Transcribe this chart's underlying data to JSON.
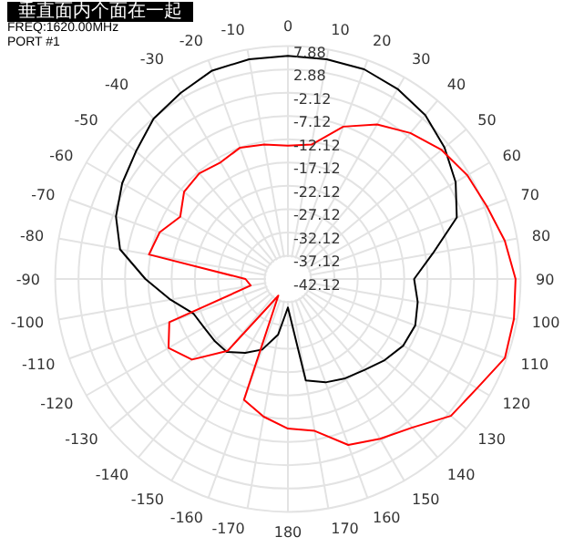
{
  "chart_data": {
    "type": "radar",
    "title": "垂直面内个面在一起",
    "subtitle": "FREQ:1620.00MHz",
    "annotations": [
      "PORT #1"
    ],
    "categories": [
      "0",
      "10",
      "20",
      "30",
      "40",
      "50",
      "60",
      "70",
      "80",
      "90",
      "100",
      "110",
      "120",
      "130",
      "140",
      "150",
      "160",
      "170",
      "180",
      "-170",
      "-160",
      "-150",
      "-140",
      "-130",
      "-120",
      "-110",
      "-100",
      "-90",
      "-80",
      "-70",
      "-60",
      "-50",
      "-40",
      "-30",
      "-20",
      "-10"
    ],
    "series": [
      {
        "color": "#000000",
        "values": [
          5.8,
          5.8,
          5.8,
          5,
          3.8,
          1.8,
          -0.5,
          -3.5,
          -10.5,
          -15,
          -13.8,
          -13,
          -13.5,
          -15,
          -16.6,
          -17.5,
          -18.5,
          -20,
          -36,
          -30,
          -26,
          -23.8,
          -21.7,
          -21.5,
          -21.3,
          -20.5,
          -16.5,
          -11.5,
          -5.5,
          -2.8,
          -1,
          0.5,
          2.8,
          4,
          5.5,
          5.8
        ]
      },
      {
        "color": "#ff0000",
        "values": [
          -13.5,
          -12.8,
          -7.3,
          -3.8,
          -1.2,
          1,
          2.4,
          3.4,
          5.2,
          6.8,
          7.2,
          7.5,
          4.8,
          3.6,
          -0.5,
          -2.5,
          -4.2,
          -9,
          -10,
          -12.1,
          -14.5,
          -38,
          -22,
          -15.2,
          -12.5,
          -15,
          -34,
          -33,
          -11.8,
          -12.8,
          -15.4,
          -13,
          -12.5,
          -13.2,
          -12.1,
          -12.8
        ]
      }
    ],
    "ylim": [
      -42.12,
      7.88
    ],
    "yticks": [
      7.88,
      2.88,
      -2.12,
      -7.12,
      -12.12,
      -17.12,
      -22.12,
      -27.12,
      -32.12,
      -37.12,
      -42.12
    ],
    "grid": true,
    "line_style": "solid",
    "marker": "none"
  }
}
